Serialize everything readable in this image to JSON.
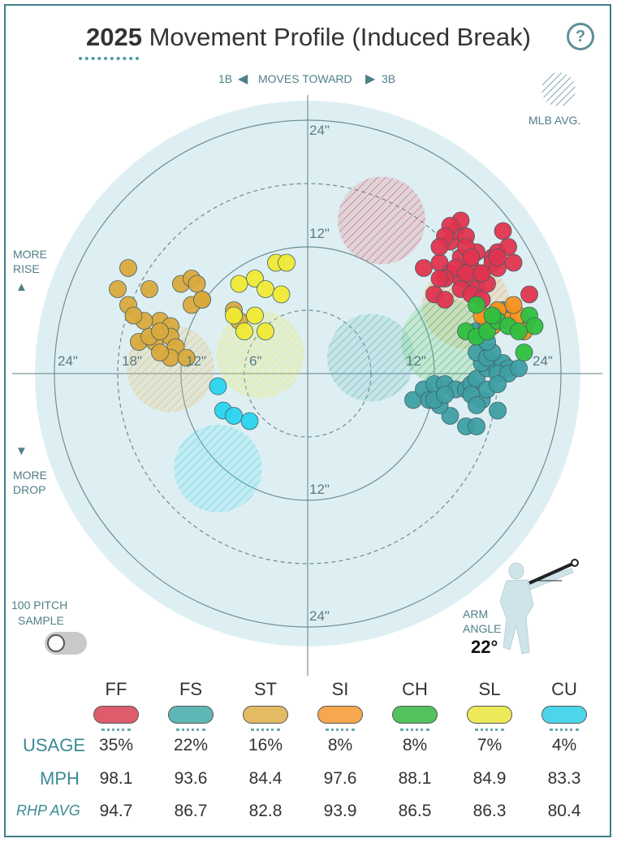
{
  "title": {
    "year": "2025",
    "text": "Movement Profile (Induced Break)"
  },
  "help_label": "?",
  "direction": {
    "left": "1B",
    "center": "MOVES TOWARD",
    "right": "3B"
  },
  "mlb_avg_label": "MLB AVG.",
  "more_rise": [
    "MORE",
    "RISE"
  ],
  "more_drop": [
    "MORE",
    "DROP"
  ],
  "ring_labels": {
    "top24": "24\"",
    "top12": "12\"",
    "bot12": "12\"",
    "bot24": "24\"",
    "l24": "24\"",
    "l18": "18\"",
    "l12": "12\"",
    "l6": "6\"",
    "r12": "12\"",
    "r24": "24\""
  },
  "sample": {
    "label_line1": "100 PITCH",
    "label_line2": "SAMPLE"
  },
  "arm_angle": {
    "label_line1": "ARM",
    "label_line2": "ANGLE",
    "value": "22°"
  },
  "table": {
    "row_labels": {
      "usage": "USAGE",
      "mph": "MPH",
      "rhp": "RHP AVG"
    },
    "pitches": [
      {
        "code": "FF",
        "color": "#de5d6d",
        "usage": "35%",
        "mph": "98.1",
        "rhp_avg": "94.7"
      },
      {
        "code": "FS",
        "color": "#5fb7b5",
        "usage": "22%",
        "mph": "93.6",
        "rhp_avg": "86.7"
      },
      {
        "code": "ST",
        "color": "#e2bb63",
        "usage": "16%",
        "mph": "84.4",
        "rhp_avg": "82.8"
      },
      {
        "code": "SI",
        "color": "#f6a84e",
        "usage": "8%",
        "mph": "97.6",
        "rhp_avg": "93.9"
      },
      {
        "code": "CH",
        "color": "#52c15e",
        "usage": "8%",
        "mph": "88.1",
        "rhp_avg": "86.5"
      },
      {
        "code": "SL",
        "color": "#ecea58",
        "usage": "7%",
        "mph": "84.9",
        "rhp_avg": "86.3"
      },
      {
        "code": "CU",
        "color": "#4bd6eb",
        "usage": "4%",
        "mph": "83.3",
        "rhp_avg": "80.4"
      }
    ]
  },
  "chart_data": {
    "type": "scatter",
    "title": "2025 Movement Profile (Induced Break)",
    "x_unit": "inches horizontal break (negative = toward 1B, positive = toward 3B)",
    "y_unit": "inches induced vertical break",
    "rings": [
      6,
      12,
      18,
      24
    ],
    "xlim": [
      -26,
      26
    ],
    "ylim": [
      -26,
      26
    ],
    "mlb_avg": [
      {
        "pitch": "FF",
        "x": 7.0,
        "y": 14.5
      },
      {
        "pitch": "FS",
        "x": 6.0,
        "y": 1.5
      },
      {
        "pitch": "ST",
        "x": -13.0,
        "y": 0.5
      },
      {
        "pitch": "SI",
        "x": 15.0,
        "y": 6.5
      },
      {
        "pitch": "CH",
        "x": 13.0,
        "y": 3.0
      },
      {
        "pitch": "SL",
        "x": -4.5,
        "y": 1.8
      },
      {
        "pitch": "CU",
        "x": -8.5,
        "y": -9.0
      }
    ],
    "series": [
      {
        "name": "FF",
        "color": "#e0344f",
        "points": [
          [
            12.5,
            10.5
          ],
          [
            13.5,
            9.5
          ],
          [
            14.5,
            9.0
          ],
          [
            15.3,
            8.8
          ],
          [
            16.0,
            8.0
          ],
          [
            17.0,
            8.5
          ],
          [
            16.5,
            9.5
          ],
          [
            15.5,
            10.0
          ],
          [
            14.5,
            11.0
          ],
          [
            13.5,
            12.5
          ],
          [
            14.0,
            13.5
          ],
          [
            15.0,
            13.0
          ],
          [
            14.5,
            14.5
          ],
          [
            13.5,
            14.0
          ],
          [
            13.0,
            13.0
          ],
          [
            12.5,
            12.0
          ],
          [
            11.0,
            10.0
          ],
          [
            12.0,
            7.5
          ],
          [
            13.0,
            7.0
          ],
          [
            14.5,
            8.0
          ],
          [
            15.5,
            7.5
          ],
          [
            16.5,
            7.0
          ],
          [
            17.5,
            11.0
          ],
          [
            18.0,
            11.5
          ],
          [
            17.5,
            10.5
          ],
          [
            19.0,
            12.0
          ],
          [
            19.5,
            10.5
          ],
          [
            18.0,
            10.0
          ],
          [
            16.0,
            11.5
          ],
          [
            15.0,
            12.0
          ],
          [
            14.0,
            10.0
          ],
          [
            15.0,
            9.5
          ],
          [
            16.5,
            9.5
          ],
          [
            15.5,
            11.0
          ],
          [
            18.5,
            13.5
          ],
          [
            18.0,
            11.0
          ],
          [
            13.0,
            9.0
          ],
          [
            21.0,
            7.5
          ],
          [
            12.5,
            9.0
          ]
        ]
      },
      {
        "name": "FS",
        "color": "#3e9fa3",
        "points": [
          [
            10.0,
            -2.5
          ],
          [
            11.0,
            -1.5
          ],
          [
            12.0,
            -1.0
          ],
          [
            13.0,
            -1.0
          ],
          [
            14.0,
            -1.5
          ],
          [
            15.0,
            -1.5
          ],
          [
            15.5,
            -1.0
          ],
          [
            16.0,
            -0.5
          ],
          [
            17.0,
            0.5
          ],
          [
            17.5,
            1.0
          ],
          [
            18.5,
            1.0
          ],
          [
            19.0,
            0.5
          ],
          [
            18.0,
            0.0
          ],
          [
            16.5,
            1.0
          ],
          [
            16.0,
            2.0
          ],
          [
            17.0,
            1.5
          ],
          [
            16.5,
            -2.5
          ],
          [
            17.0,
            -1.5
          ],
          [
            18.0,
            -3.5
          ],
          [
            19.0,
            0.0
          ],
          [
            17.5,
            2.0
          ],
          [
            16.0,
            4.0
          ],
          [
            17.0,
            4.5
          ],
          [
            17.5,
            5.5
          ],
          [
            18.5,
            6.0
          ],
          [
            20.0,
            0.5
          ],
          [
            15.0,
            -5.0
          ],
          [
            16.0,
            -5.0
          ],
          [
            13.5,
            -4.0
          ],
          [
            12.5,
            -3.0
          ],
          [
            11.5,
            -2.5
          ],
          [
            12.0,
            -2.5
          ],
          [
            13.0,
            -2.0
          ],
          [
            18.0,
            -1.0
          ],
          [
            15.5,
            -2.0
          ],
          [
            17.5,
            4.5
          ],
          [
            17.0,
            3.0
          ],
          [
            16.0,
            -3.0
          ]
        ]
      },
      {
        "name": "ST",
        "color": "#d9a93c",
        "points": [
          [
            -18.0,
            8.0
          ],
          [
            -17.0,
            6.5
          ],
          [
            -15.0,
            8.0
          ],
          [
            -14.0,
            5.0
          ],
          [
            -13.0,
            4.5
          ],
          [
            -15.5,
            5.0
          ],
          [
            -16.0,
            3.0
          ],
          [
            -14.5,
            3.0
          ],
          [
            -13.0,
            3.5
          ],
          [
            -12.5,
            2.5
          ],
          [
            -13.0,
            1.5
          ],
          [
            -11.5,
            1.5
          ],
          [
            -14.0,
            2.0
          ],
          [
            -16.5,
            5.5
          ],
          [
            -10.0,
            7.0
          ],
          [
            -12.0,
            8.5
          ],
          [
            -11.0,
            9.0
          ],
          [
            -10.5,
            8.5
          ],
          [
            -11.0,
            6.5
          ],
          [
            -10.0,
            7.0
          ],
          [
            -7.0,
            6.0
          ],
          [
            -6.5,
            5.0
          ],
          [
            -15.0,
            3.5
          ],
          [
            -14.0,
            4.0
          ],
          [
            -17.0,
            10.0
          ]
        ]
      },
      {
        "name": "SI",
        "color": "#f7921e",
        "points": [
          [
            18.0,
            6.0
          ],
          [
            19.0,
            5.0
          ],
          [
            20.0,
            5.5
          ],
          [
            19.5,
            6.5
          ],
          [
            17.0,
            5.0
          ],
          [
            16.5,
            5.5
          ],
          [
            17.5,
            4.5
          ],
          [
            18.0,
            6.0
          ],
          [
            20.5,
            4.0
          ],
          [
            20.5,
            4.0
          ]
        ]
      },
      {
        "name": "CH",
        "color": "#2fbf3e",
        "points": [
          [
            16.0,
            6.5
          ],
          [
            15.0,
            4.0
          ],
          [
            16.0,
            3.5
          ],
          [
            17.0,
            4.0
          ],
          [
            18.0,
            5.0
          ],
          [
            19.0,
            4.5
          ],
          [
            20.0,
            4.0
          ],
          [
            21.0,
            5.5
          ],
          [
            21.5,
            4.5
          ],
          [
            17.5,
            5.5
          ],
          [
            20.5,
            2.0
          ]
        ]
      },
      {
        "name": "SL",
        "color": "#f0e934",
        "points": [
          [
            -3.0,
            10.5
          ],
          [
            -2.0,
            10.5
          ],
          [
            -5.0,
            9.0
          ],
          [
            -4.0,
            8.0
          ],
          [
            -2.5,
            7.5
          ],
          [
            -6.5,
            8.5
          ],
          [
            -7.0,
            5.5
          ],
          [
            -6.0,
            4.0
          ],
          [
            -5.0,
            5.5
          ],
          [
            -4.0,
            4.0
          ]
        ]
      },
      {
        "name": "CU",
        "color": "#2ad3ee",
        "points": [
          [
            -8.5,
            -1.2
          ],
          [
            -8.0,
            -3.5
          ],
          [
            -7.0,
            -4.0
          ],
          [
            -5.5,
            -4.5
          ]
        ]
      }
    ]
  }
}
